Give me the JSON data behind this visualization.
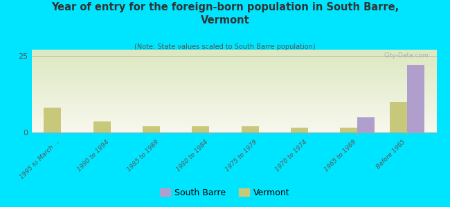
{
  "title": "Year of entry for the foreign-born population in South Barre,\nVermont",
  "subtitle": "(Note: State values scaled to South Barre population)",
  "categories": [
    "1995 to March ...",
    "1990 to 1994",
    "1985 to 1989",
    "1980 to 1984",
    "1975 to 1979",
    "1970 to 1974",
    "1965 to 1969",
    "Before 1965"
  ],
  "south_barre_values": [
    0,
    0,
    0,
    0,
    0,
    0,
    5,
    22
  ],
  "vermont_values": [
    8,
    3.5,
    2,
    2,
    2,
    1.5,
    1.5,
    10
  ],
  "south_barre_color": "#b09fcc",
  "vermont_color": "#c8c87a",
  "bg_color": "#00e5ff",
  "grad_top": "#dce8c0",
  "grad_bottom": "#f8f8ee",
  "ylim": [
    0,
    27
  ],
  "yticks": [
    0,
    25
  ],
  "bar_width": 0.35,
  "watermark": "City-Data.com"
}
